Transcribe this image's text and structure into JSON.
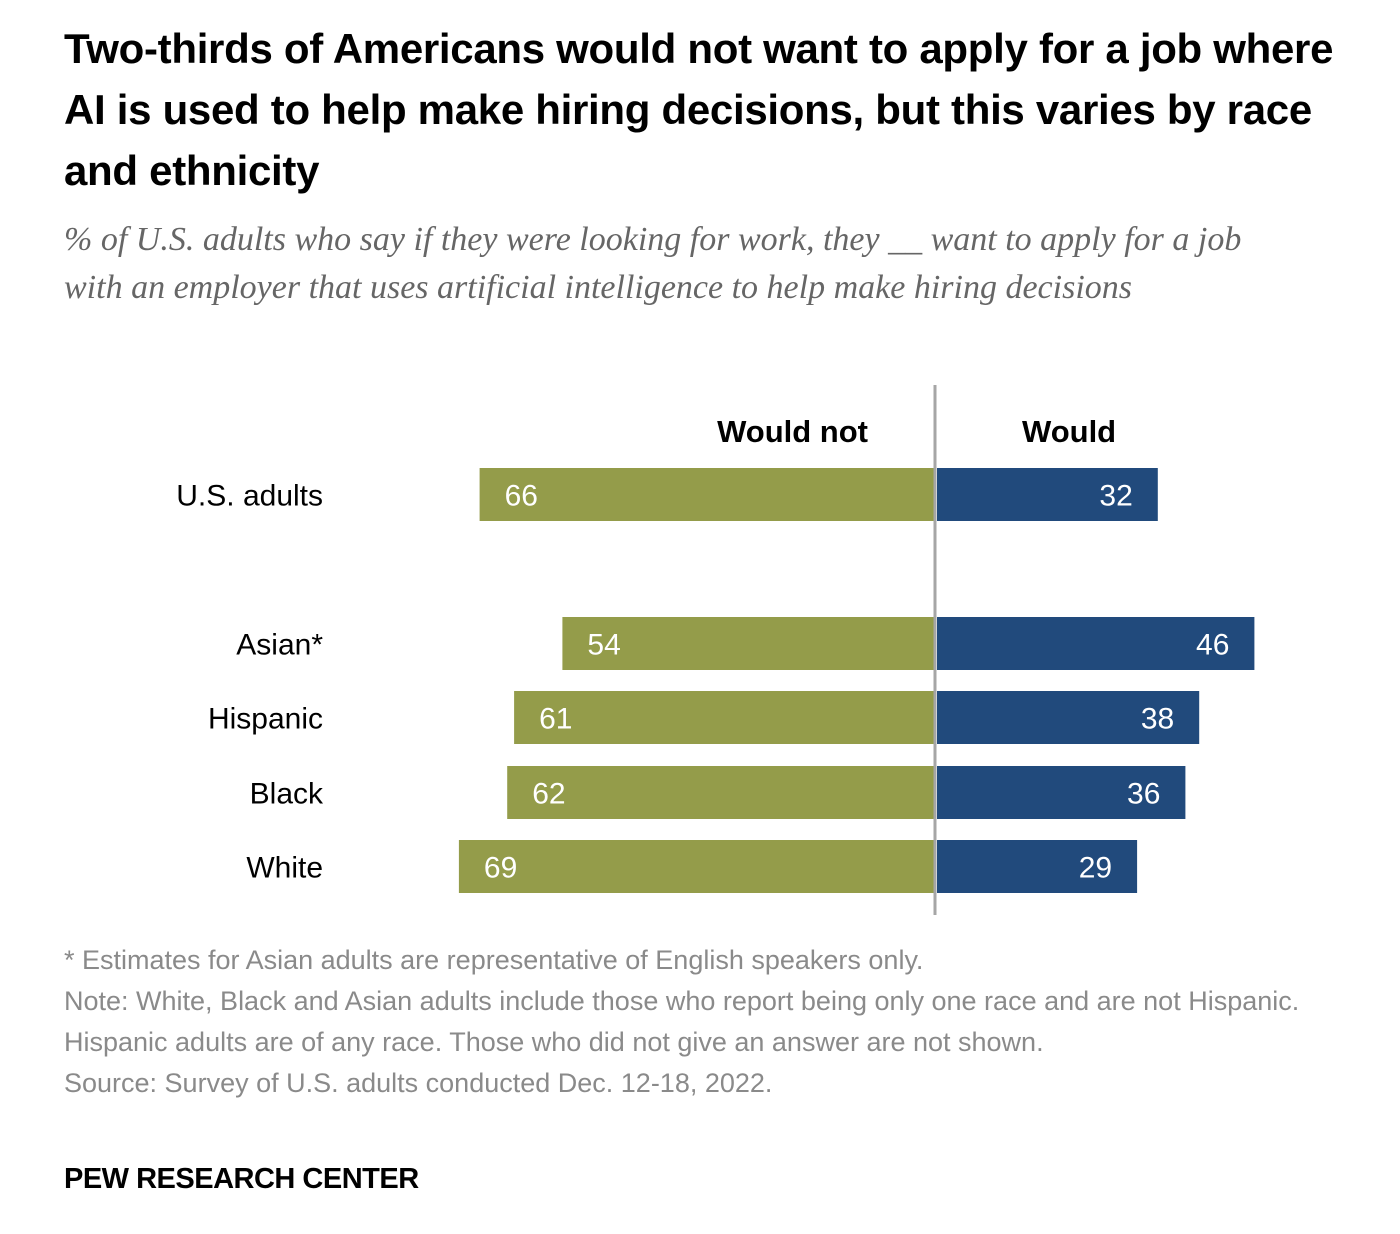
{
  "title": "Two-thirds of Americans would not want to apply for a job where AI is used to help make hiring decisions, but this varies by race and ethnicity",
  "subtitle": "% of U.S. adults who say if they were looking for work, they __ want to apply for a job with an employer that uses artificial intelligence to help make hiring decisions",
  "notes": {
    "asterisk": "* Estimates for Asian adults are representative of English speakers only.",
    "note": "Note: White, Black and Asian adults include those who report being only one race and are not Hispanic. Hispanic adults are of any race. Those who did not give an answer are not shown.",
    "source": "Source: Survey of U.S. adults conducted Dec. 12-18, 2022."
  },
  "brand": "PEW RESEARCH CENTER",
  "colors": {
    "would_not": "#949c4a",
    "would": "#214a7c",
    "axis": "#a6a6a6"
  },
  "chart_data": {
    "type": "bar",
    "orientation": "diverging-horizontal",
    "categories": [
      "U.S. adults",
      "Asian*",
      "Hispanic",
      "Black",
      "White"
    ],
    "series": [
      {
        "name": "Would not",
        "values": [
          66,
          54,
          61,
          62,
          69
        ],
        "direction": "left"
      },
      {
        "name": "Would",
        "values": [
          32,
          46,
          38,
          36,
          29
        ],
        "direction": "right"
      }
    ],
    "title": "Two-thirds of Americans would not want to apply for a job where AI is used to help make hiring decisions, but this varies by race and ethnicity",
    "xlabel": "",
    "ylabel": "",
    "unit": "%",
    "grid": false,
    "legend": "top-column-headers"
  }
}
